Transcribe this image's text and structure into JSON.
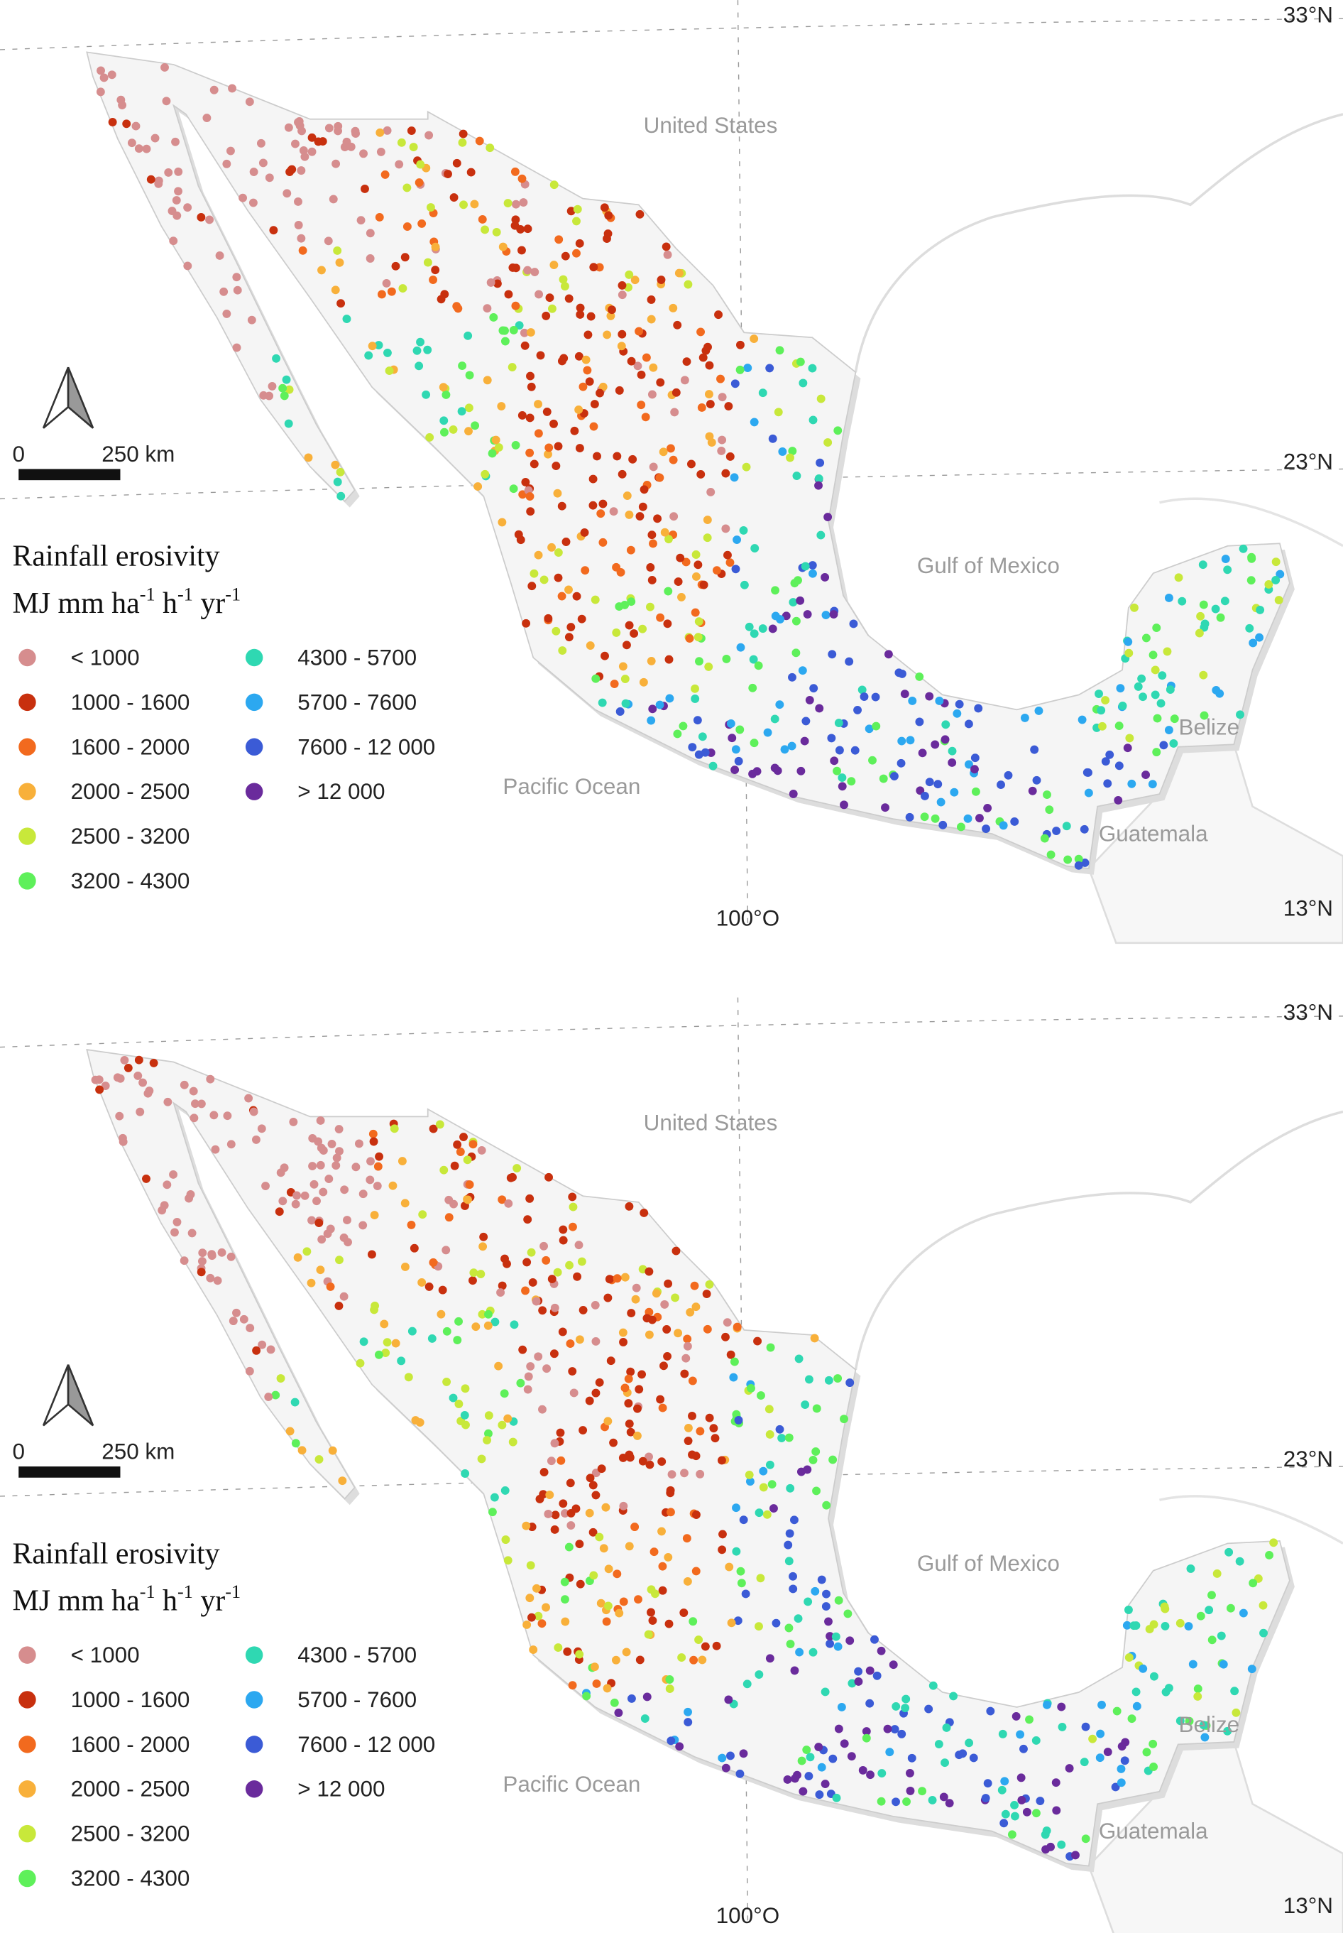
{
  "panels": [
    {
      "labels": {
        "country_north": "United States",
        "gulf": "Gulf of Mexico",
        "ocean": "Pacific Ocean",
        "belize": "Belize",
        "guatemala": "Guatemala"
      },
      "graticule": {
        "lat": [
          "33°N",
          "23°N",
          "13°N"
        ],
        "lon": "100°O"
      },
      "scale_bar": {
        "start": "0",
        "end": "250 km"
      },
      "legend": {
        "title": "Rainfall erosivity",
        "unit": [
          "MJ mm ha",
          "-1",
          "h",
          "-1",
          "yr",
          "-1"
        ],
        "items": [
          {
            "label": "< 1000",
            "color": "#d68d8e"
          },
          {
            "label": "1000 - 1600",
            "color": "#c8300e"
          },
          {
            "label": "1600 - 2000",
            "color": "#f26a1e"
          },
          {
            "label": "2000 - 2500",
            "color": "#f8b03a"
          },
          {
            "label": "2500 - 3200",
            "color": "#c8e83a"
          },
          {
            "label": "3200 - 4300",
            "color": "#5ef05a"
          },
          {
            "label": "4300 - 5700",
            "color": "#2fd8b2"
          },
          {
            "label": "5700 - 7600",
            "color": "#2ca8f0"
          },
          {
            "label": "7600 - 12 000",
            "color": "#3b5bd6"
          },
          {
            "label": "> 12 000",
            "color": "#6a2b9c"
          }
        ]
      }
    },
    {
      "labels": {
        "country_north": "United States",
        "gulf": "Gulf of Mexico",
        "ocean": "Pacific Ocean",
        "belize": "Belize",
        "guatemala": "Guatemala"
      },
      "graticule": {
        "lat": [
          "33°N",
          "23°N",
          "13°N"
        ],
        "lon": "100°O"
      },
      "scale_bar": {
        "start": "0",
        "end": "250 km"
      },
      "legend": {
        "title": "Rainfall erosivity",
        "unit": [
          "MJ mm ha",
          "-1",
          "h",
          "-1",
          "yr",
          "-1"
        ],
        "items": [
          {
            "label": "< 1000",
            "color": "#d68d8e"
          },
          {
            "label": "1000 - 1600",
            "color": "#c8300e"
          },
          {
            "label": "1600 - 2000",
            "color": "#f26a1e"
          },
          {
            "label": "2000 - 2500",
            "color": "#f8b03a"
          },
          {
            "label": "2500 - 3200",
            "color": "#c8e83a"
          },
          {
            "label": "3200 - 4300",
            "color": "#5ef05a"
          },
          {
            "label": "4300 - 5700",
            "color": "#2fd8b2"
          },
          {
            "label": "5700 - 7600",
            "color": "#2ca8f0"
          },
          {
            "label": "7600 - 12 000",
            "color": "#3b5bd6"
          },
          {
            "label": "> 12 000",
            "color": "#6a2b9c"
          }
        ]
      }
    }
  ]
}
